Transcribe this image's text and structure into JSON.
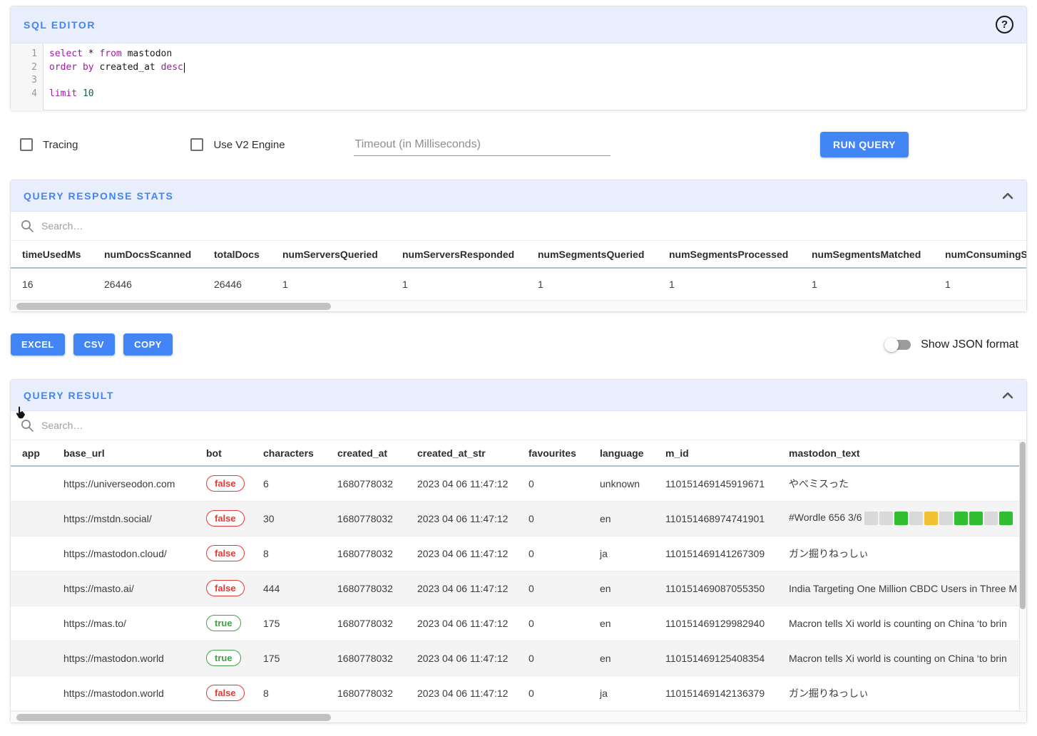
{
  "colors": {
    "accent": "#4285f4",
    "header_bg": "#e8eefb",
    "keyword": "#a219a2",
    "number_token": "#116644",
    "true_pill": "#43a047",
    "false_pill": "#e53935",
    "wordle_green": "#30bf30",
    "wordle_yellow": "#f2c233",
    "wordle_gray": "#d9d9d9"
  },
  "icons": {
    "help_glyph": "?"
  },
  "sql_editor": {
    "title": "SQL EDITOR",
    "line_numbers": [
      "1",
      "2",
      "3",
      "4"
    ],
    "code": {
      "line1": {
        "kw1": "select",
        "star": "*",
        "kw2": "from",
        "ident": "mastodon"
      },
      "line2": {
        "kw1": "order",
        "kw2": "by",
        "ident": "created_at",
        "kw3": "desc"
      },
      "line4": {
        "kw1": "limit",
        "num": "10"
      }
    }
  },
  "controls": {
    "tracing_label": "Tracing",
    "v2_label": "Use V2 Engine",
    "timeout_placeholder": "Timeout (in Milliseconds)",
    "run_query_label": "RUN QUERY"
  },
  "stats": {
    "title": "QUERY RESPONSE STATS",
    "search_placeholder": "Search…",
    "headers": [
      "timeUsedMs",
      "numDocsScanned",
      "totalDocs",
      "numServersQueried",
      "numServersResponded",
      "numSegmentsQueried",
      "numSegmentsProcessed",
      "numSegmentsMatched",
      "numConsumingSegmentsQueried"
    ],
    "values": [
      "16",
      "26446",
      "26446",
      "1",
      "1",
      "1",
      "1",
      "1",
      "1"
    ]
  },
  "export": {
    "excel_label": "EXCEL",
    "csv_label": "CSV",
    "copy_label": "COPY",
    "json_toggle_label": "Show JSON format"
  },
  "result": {
    "title": "QUERY RESULT",
    "search_placeholder": "Search…",
    "headers": [
      "app",
      "base_url",
      "bot",
      "characters",
      "created_at",
      "created_at_str",
      "favourites",
      "language",
      "m_id",
      "mastodon_text"
    ],
    "rows": [
      {
        "app": "",
        "base_url": "https://universeodon.com",
        "bot": "false",
        "characters": "6",
        "created_at": "1680778032",
        "created_at_str": "2023 04 06 11:47:12",
        "favourites": "0",
        "language": "unknown",
        "m_id": "110151469145919671",
        "text": "やべミスった"
      },
      {
        "app": "",
        "base_url": "https://mstdn.social/",
        "bot": "false",
        "characters": "30",
        "created_at": "1680778032",
        "created_at_str": "2023 04 06 11:47:12",
        "favourites": "0",
        "language": "en",
        "m_id": "110151468974741901",
        "text": "#Wordle 656 3/6"
      },
      {
        "app": "",
        "base_url": "https://mastodon.cloud/",
        "bot": "false",
        "characters": "8",
        "created_at": "1680778032",
        "created_at_str": "2023 04 06 11:47:12",
        "favourites": "0",
        "language": "ja",
        "m_id": "110151469141267309",
        "text": "ガン掘りねっしぃ"
      },
      {
        "app": "",
        "base_url": "https://masto.ai/",
        "bot": "false",
        "characters": "444",
        "created_at": "1680778032",
        "created_at_str": "2023 04 06 11:47:12",
        "favourites": "0",
        "language": "en",
        "m_id": "110151469087055350",
        "text": "India Targeting One Million CBDC Users in Three M"
      },
      {
        "app": "",
        "base_url": "https://mas.to/",
        "bot": "true",
        "characters": "175",
        "created_at": "1680778032",
        "created_at_str": "2023 04 06 11:47:12",
        "favourites": "0",
        "language": "en",
        "m_id": "110151469129982940",
        "text": "Macron tells Xi world is counting on China ‘to brin"
      },
      {
        "app": "",
        "base_url": "https://mastodon.world",
        "bot": "true",
        "characters": "175",
        "created_at": "1680778032",
        "created_at_str": "2023 04 06 11:47:12",
        "favourites": "0",
        "language": "en",
        "m_id": "110151469125408354",
        "text": "Macron tells Xi world is counting on China ‘to brin"
      },
      {
        "app": "",
        "base_url": "https://mastodon.world",
        "bot": "false",
        "characters": "8",
        "created_at": "1680778032",
        "created_at_str": "2023 04 06 11:47:12",
        "favourites": "0",
        "language": "ja",
        "m_id": "110151469142136379",
        "text": "ガン掘りねっしぃ"
      }
    ],
    "wordle_squares": [
      "gray",
      "gray",
      "green",
      "gray",
      "yellow",
      "gray",
      "green",
      "green",
      "gray",
      "green"
    ]
  }
}
